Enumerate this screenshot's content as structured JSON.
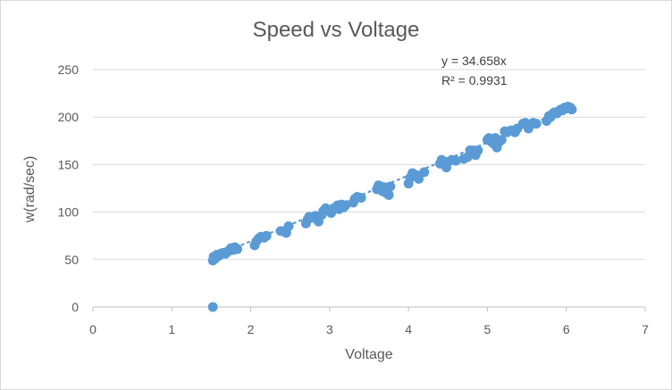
{
  "chart_data": {
    "type": "scatter",
    "title": "Speed vs Voltage",
    "xlabel": "Voltage",
    "ylabel": "w(rad/sec)",
    "xlim": [
      0,
      7
    ],
    "ylim": [
      0,
      250
    ],
    "xticks": [
      0,
      1,
      2,
      3,
      4,
      5,
      6,
      7
    ],
    "yticks": [
      0,
      50,
      100,
      150,
      200,
      250
    ],
    "grid": "horizontal",
    "series": [
      {
        "name": "w(rad/sec)",
        "color": "#5b9bd5",
        "points": [
          [
            1.52,
            0
          ],
          [
            1.52,
            49
          ],
          [
            1.53,
            53
          ],
          [
            1.55,
            51
          ],
          [
            1.57,
            55
          ],
          [
            1.6,
            54
          ],
          [
            1.62,
            56
          ],
          [
            1.65,
            57
          ],
          [
            1.68,
            56
          ],
          [
            1.7,
            58
          ],
          [
            1.72,
            59
          ],
          [
            1.75,
            62
          ],
          [
            1.78,
            60
          ],
          [
            1.8,
            63
          ],
          [
            1.83,
            61
          ],
          [
            2.05,
            65
          ],
          [
            2.07,
            69
          ],
          [
            2.1,
            72
          ],
          [
            2.13,
            74
          ],
          [
            2.17,
            73
          ],
          [
            2.2,
            75
          ],
          [
            2.38,
            80
          ],
          [
            2.45,
            78
          ],
          [
            2.48,
            85
          ],
          [
            2.7,
            88
          ],
          [
            2.72,
            92
          ],
          [
            2.74,
            95
          ],
          [
            2.78,
            94
          ],
          [
            2.82,
            96
          ],
          [
            2.86,
            90
          ],
          [
            2.9,
            97
          ],
          [
            2.92,
            101
          ],
          [
            2.95,
            104
          ],
          [
            2.98,
            102
          ],
          [
            3.02,
            99
          ],
          [
            3.05,
            104
          ],
          [
            3.1,
            107
          ],
          [
            3.12,
            103
          ],
          [
            3.15,
            108
          ],
          [
            3.18,
            105
          ],
          [
            3.2,
            107
          ],
          [
            3.3,
            110
          ],
          [
            3.32,
            114
          ],
          [
            3.35,
            116
          ],
          [
            3.4,
            115
          ],
          [
            3.6,
            124
          ],
          [
            3.62,
            128
          ],
          [
            3.65,
            127
          ],
          [
            3.67,
            122
          ],
          [
            3.7,
            126
          ],
          [
            3.72,
            120
          ],
          [
            3.75,
            118
          ],
          [
            3.77,
            127
          ],
          [
            4.0,
            130
          ],
          [
            4.02,
            136
          ],
          [
            4.05,
            141
          ],
          [
            4.07,
            138
          ],
          [
            4.1,
            139
          ],
          [
            4.13,
            135
          ],
          [
            4.2,
            142
          ],
          [
            4.4,
            151
          ],
          [
            4.42,
            155
          ],
          [
            4.45,
            153
          ],
          [
            4.48,
            147
          ],
          [
            4.5,
            153
          ],
          [
            4.55,
            155
          ],
          [
            4.6,
            154
          ],
          [
            4.7,
            156
          ],
          [
            4.75,
            158
          ],
          [
            4.78,
            165
          ],
          [
            4.8,
            162
          ],
          [
            4.82,
            165
          ],
          [
            4.85,
            160
          ],
          [
            4.88,
            165
          ],
          [
            5.0,
            176
          ],
          [
            5.02,
            178
          ],
          [
            5.05,
            174
          ],
          [
            5.08,
            172
          ],
          [
            5.1,
            178
          ],
          [
            5.12,
            168
          ],
          [
            5.15,
            174
          ],
          [
            5.18,
            176
          ],
          [
            5.22,
            185
          ],
          [
            5.25,
            184
          ],
          [
            5.3,
            186
          ],
          [
            5.35,
            184
          ],
          [
            5.38,
            188
          ],
          [
            5.45,
            193
          ],
          [
            5.48,
            194
          ],
          [
            5.52,
            188
          ],
          [
            5.55,
            192
          ],
          [
            5.58,
            194
          ],
          [
            5.62,
            193
          ],
          [
            5.75,
            196
          ],
          [
            5.78,
            201
          ],
          [
            5.8,
            200
          ],
          [
            5.82,
            203
          ],
          [
            5.85,
            205
          ],
          [
            5.88,
            204
          ],
          [
            5.9,
            206
          ],
          [
            5.93,
            208
          ],
          [
            5.95,
            207
          ],
          [
            5.98,
            210
          ],
          [
            6.0,
            209
          ],
          [
            6.02,
            211
          ],
          [
            6.05,
            210
          ],
          [
            6.07,
            208
          ]
        ]
      }
    ],
    "trendline": {
      "type": "linear-through-origin",
      "slope": 34.658,
      "x_range": [
        1.52,
        6.07
      ],
      "equation_label": "y = 34.658x",
      "r2_label": "R² = 0.9931",
      "color": "#5b9bd5"
    }
  }
}
